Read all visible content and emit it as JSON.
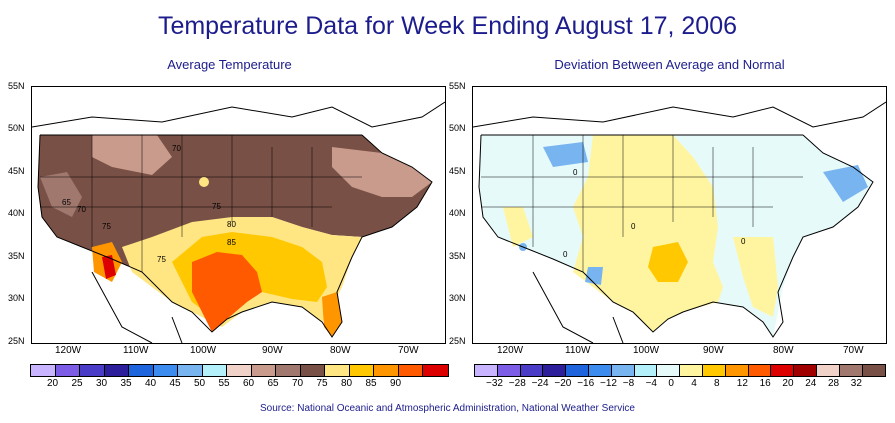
{
  "title": "Temperature Data for Week Ending August 17, 2006",
  "left_map": {
    "subtitle": "Average Temperature",
    "y_labels": [
      "55N",
      "50N",
      "45N",
      "40N",
      "35N",
      "30N",
      "25N"
    ],
    "x_labels": [
      "120W",
      "110W",
      "100W",
      "90W",
      "80W",
      "70W"
    ],
    "contour_labels": [
      "70",
      "65",
      "70",
      "75",
      "75",
      "75",
      "80",
      "85"
    ],
    "legend": {
      "labels": [
        "20",
        "25",
        "30",
        "35",
        "40",
        "45",
        "50",
        "55",
        "60",
        "65",
        "70",
        "75",
        "80",
        "85",
        "90"
      ],
      "colors": [
        "#c8b4ff",
        "#7d5ce6",
        "#4b3cc8",
        "#2d1e9c",
        "#1e64dc",
        "#3c8cf0",
        "#78b4f0",
        "#b4f0fa",
        "#f0d2c8",
        "#c89b8c",
        "#a0786e",
        "#785046",
        "#ffe682",
        "#ffc800",
        "#ff9600",
        "#ff5a00",
        "#dc0000"
      ]
    }
  },
  "right_map": {
    "subtitle": "Deviation Between Average and Normal",
    "y_labels": [
      "55N",
      "50N",
      "45N",
      "40N",
      "35N",
      "30N",
      "25N"
    ],
    "x_labels": [
      "120W",
      "110W",
      "100W",
      "90W",
      "80W",
      "70W"
    ],
    "contour_labels": [
      "0",
      "0",
      "0",
      "0"
    ],
    "legend": {
      "labels": [
        "−32",
        "−28",
        "−24",
        "−20",
        "−16",
        "−12",
        "−8",
        "−4",
        "0",
        "4",
        "8",
        "12",
        "16",
        "20",
        "24",
        "28",
        "32"
      ],
      "colors": [
        "#c8b4ff",
        "#7d5ce6",
        "#4b3cc8",
        "#2d1e9c",
        "#1e64dc",
        "#3c8cf0",
        "#78b4f0",
        "#b4f0fa",
        "#e6fafa",
        "#fff5a0",
        "#ffc800",
        "#ff9600",
        "#ff5a00",
        "#dc0000",
        "#a00000",
        "#f0d2c8",
        "#a0786e",
        "#785046"
      ]
    }
  },
  "source": "Source:  National Oceanic and Atmospheric Administration, National Weather Service"
}
